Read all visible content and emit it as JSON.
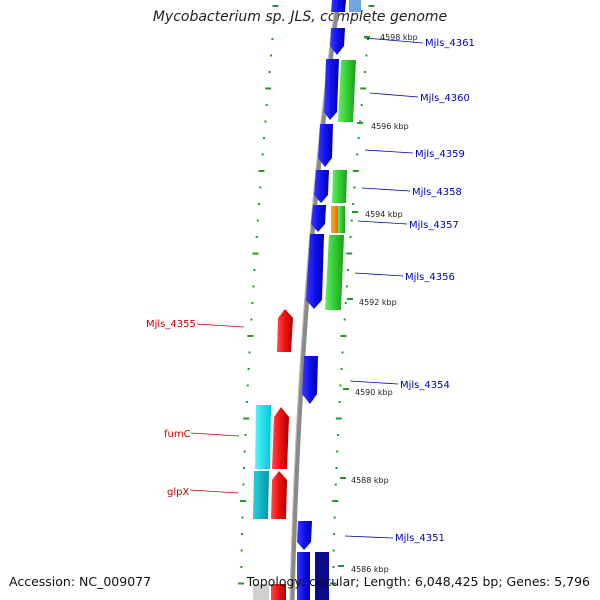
{
  "title": "Mycobacterium sp. JLS, complete genome",
  "footer": {
    "accession": "Accession: NC_009077",
    "summary": "Topology: circular; Length: 6,048,425 bp; Genes: 5,796"
  },
  "colors": {
    "forward_gene": "#1010ee",
    "forward_gene_dark": "#0b0b88",
    "reverse_gene": "#ee1111",
    "cds_green": "#33cc33",
    "cds_orange": "#ff8800",
    "cds_cyan": "#00e5f0",
    "cds_teal": "#00b6c6",
    "label_forward": "#0000bb",
    "label_reverse": "#cc0000",
    "tick": "#229922",
    "backbone": "#888888"
  },
  "scale_labels": [
    "4598 kbp",
    "4596 kbp",
    "4594 kbp",
    "4592 kbp",
    "4590 kbp",
    "4588 kbp",
    "4586 kbp"
  ],
  "genes": [
    {
      "name": "Mjls_4361",
      "strand": "forward"
    },
    {
      "name": "Mjls_4360",
      "strand": "forward"
    },
    {
      "name": "Mjls_4359",
      "strand": "forward"
    },
    {
      "name": "Mjls_4358",
      "strand": "forward"
    },
    {
      "name": "Mjls_4357",
      "strand": "forward"
    },
    {
      "name": "Mjls_4356",
      "strand": "forward"
    },
    {
      "name": "Mjls_4355",
      "strand": "reverse"
    },
    {
      "name": "Mjls_4354",
      "strand": "forward"
    },
    {
      "name": "fumC",
      "strand": "reverse"
    },
    {
      "name": "glpX",
      "strand": "reverse"
    },
    {
      "name": "Mjls_4351",
      "strand": "forward"
    }
  ]
}
